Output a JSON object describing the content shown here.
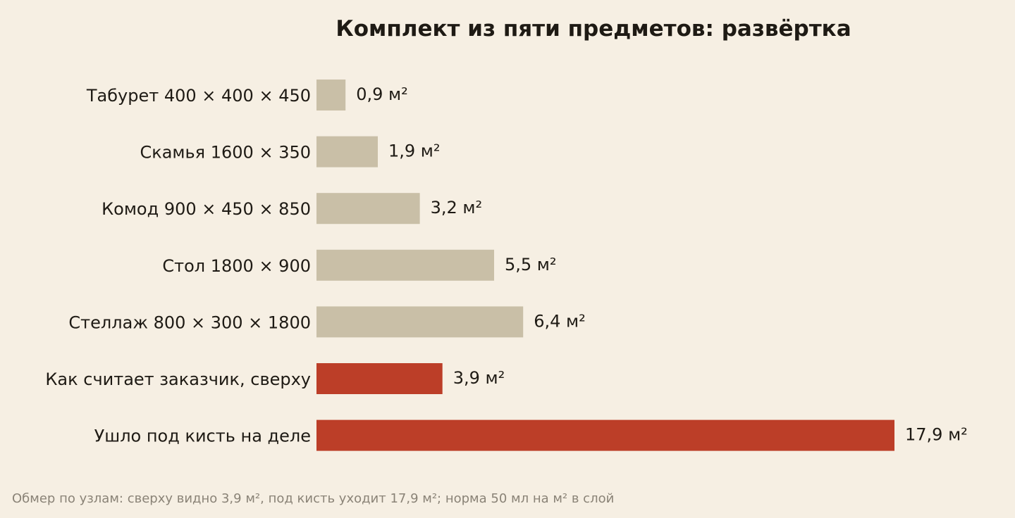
{
  "chart_data": {
    "type": "bar",
    "orientation": "horizontal",
    "title": "Комплект из пяти предметов: развёртка",
    "categories": [
      "Табурет 400 × 400 × 450",
      "Скамья 1600 × 350",
      "Комод 900 × 450 × 850",
      "Стол 1800 × 900",
      "Стеллаж 800 × 300 × 1800",
      "Как считает заказчик, сверху",
      "Ушло под кисть на деле"
    ],
    "values": [
      0.9,
      1.9,
      3.2,
      5.5,
      6.4,
      3.9,
      17.9
    ],
    "value_labels": [
      "0,9 м²",
      "1,9 м²",
      "3,2 м²",
      "5,5 м²",
      "6,4 м²",
      "3,9 м²",
      "17,9 м²"
    ],
    "unit": "м²",
    "xlim": [
      0,
      17.9
    ],
    "grid": false,
    "legend": "none",
    "colors": {
      "item": "#c9bfa7",
      "highlight": "#bc3e28",
      "background": "#f6efe3",
      "text": "#1e1a14",
      "footnote": "#8a8377"
    },
    "bar_colors": [
      "item",
      "item",
      "item",
      "item",
      "item",
      "highlight",
      "highlight"
    ],
    "footnote": "Обмер по узлам: сверху видно 3,9 м², под кисть уходит 17,9 м²; норма 50 мл на м² в слой"
  }
}
